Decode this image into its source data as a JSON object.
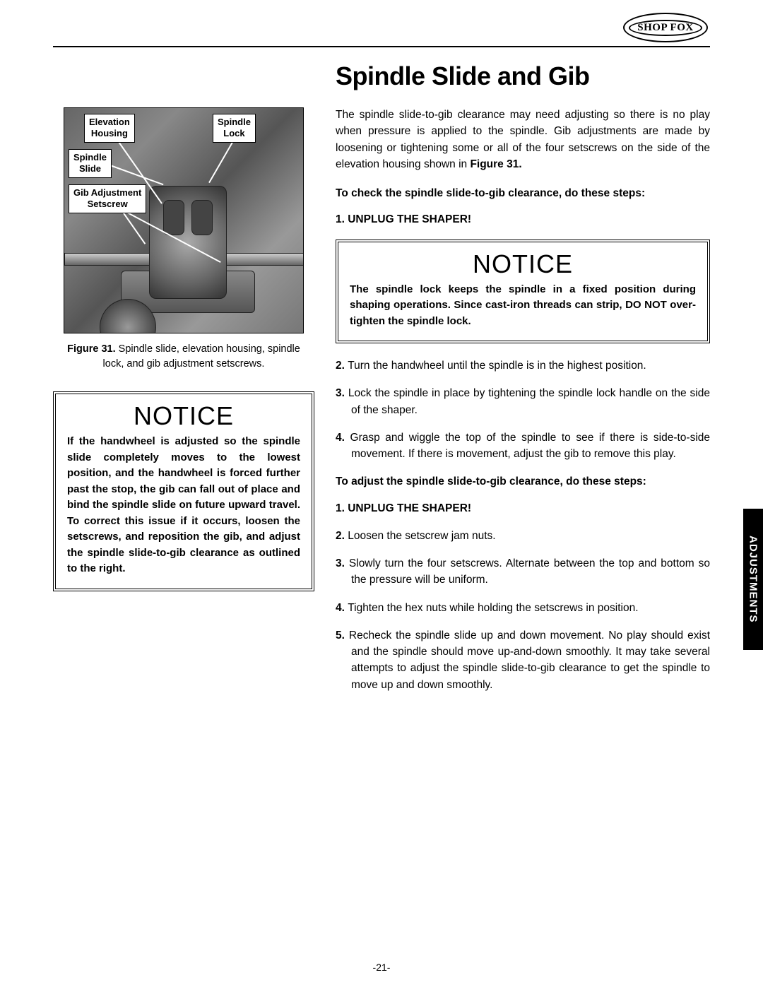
{
  "logo_text": "SHOP FOX",
  "side_tab": "ADJUSTMENTS",
  "page_number": "-21-",
  "section_title": "Spindle Slide and Gib",
  "figure": {
    "callouts": {
      "elevation_housing": "Elevation\nHousing",
      "spindle_lock": "Spindle\nLock",
      "spindle_slide": "Spindle\nSlide",
      "gib_setscrew": "Gib Adjustment\nSetscrew"
    },
    "caption_label": "Figure 31.",
    "caption_text": " Spindle slide, elevation housing, spindle lock, and gib adjustment setscrews."
  },
  "notice_left": {
    "title": "NOTICE",
    "body": "If the handwheel is adjusted so the spindle slide completely moves to the lowest position, and the handwheel is forced further past the stop, the gib can fall out of place and bind the spindle slide on future upward travel. To correct this issue if it occurs, loosen the setscrews, and reposition the gib, and adjust the spindle slide-to-gib clearance as outlined to the right."
  },
  "intro_para": "The spindle slide-to-gib clearance may need adjusting so there is no play when pressure is applied to the spindle. Gib adjustments are made by loosening or tightening some or all of the four setscrews on the side of the elevation housing shown in ",
  "intro_fig_ref": "Figure 31.",
  "check_heading": "To check the spindle slide-to-gib clearance, do these steps:",
  "check_steps": [
    {
      "num": "1.",
      "text": "UNPLUG THE SHAPER!",
      "bold": true
    }
  ],
  "notice_right": {
    "title": "NOTICE",
    "body": "The spindle lock keeps the spindle in a fixed position during shaping operations. Since cast-iron threads can strip, DO NOT over-tighten the spindle lock."
  },
  "check_steps_after": [
    {
      "num": "2.",
      "text": "Turn the handwheel until the spindle is in the highest position."
    },
    {
      "num": "3.",
      "text": "Lock the spindle in place by tightening the spindle lock handle on the side of the shaper."
    },
    {
      "num": "4.",
      "text": "Grasp and wiggle the top of the spindle to see if there is side-to-side movement. If there is movement, adjust the gib to remove this play."
    }
  ],
  "adjust_heading": "To adjust the spindle slide-to-gib clearance, do these steps:",
  "adjust_steps": [
    {
      "num": "1.",
      "text": "UNPLUG THE SHAPER!",
      "bold": true
    },
    {
      "num": "2.",
      "text": "Loosen the setscrew jam nuts."
    },
    {
      "num": "3.",
      "text": "Slowly turn the four setscrews. Alternate between the top and bottom so the pressure will be uniform."
    },
    {
      "num": "4.",
      "text": "Tighten the hex nuts while holding the setscrews in position."
    },
    {
      "num": "5.",
      "text": "Recheck the spindle slide up and down movement. No play should exist and the spindle should move up-and-down smoothly. It may take several attempts to adjust the spindle slide-to-gib clearance to get the spindle to move up and down smoothly."
    }
  ]
}
